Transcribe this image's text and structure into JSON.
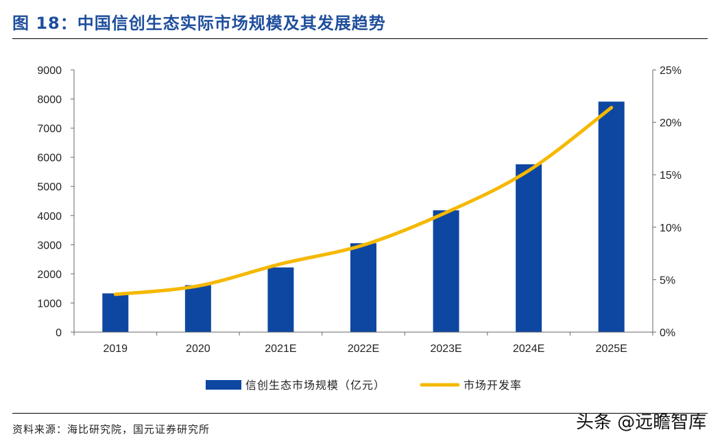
{
  "title": "图 18：中国信创生态实际市场规模及其发展趋势",
  "source": "资料来源：海比研究院，国元证券研究所",
  "watermark": "头条 @远瞻智库",
  "chart_data": {
    "type": "bar",
    "categories": [
      "2019",
      "2020",
      "2021E",
      "2022E",
      "2023E",
      "2024E",
      "2025E"
    ],
    "series": [
      {
        "name": "信创生态市场规模（亿元）",
        "type": "bar",
        "axis": "left",
        "values": [
          1330,
          1610,
          2220,
          3050,
          4180,
          5760,
          7910
        ]
      },
      {
        "name": "市场开发率",
        "type": "line",
        "axis": "right",
        "values": [
          3.6,
          4.4,
          6.5,
          8.3,
          11.4,
          15.4,
          21.4
        ]
      }
    ],
    "y_left": {
      "min": 0,
      "max": 9000,
      "ticks": [
        0,
        1000,
        2000,
        3000,
        4000,
        5000,
        6000,
        7000,
        8000,
        9000
      ]
    },
    "y_right": {
      "min": 0,
      "max": 25,
      "ticks": [
        0,
        5,
        10,
        15,
        20,
        25
      ],
      "unit": "%"
    },
    "legend": "bottom",
    "grid": false,
    "colors": {
      "bar": "#0d47a1",
      "line": "#f5b800",
      "title": "#1f4e9c"
    }
  }
}
